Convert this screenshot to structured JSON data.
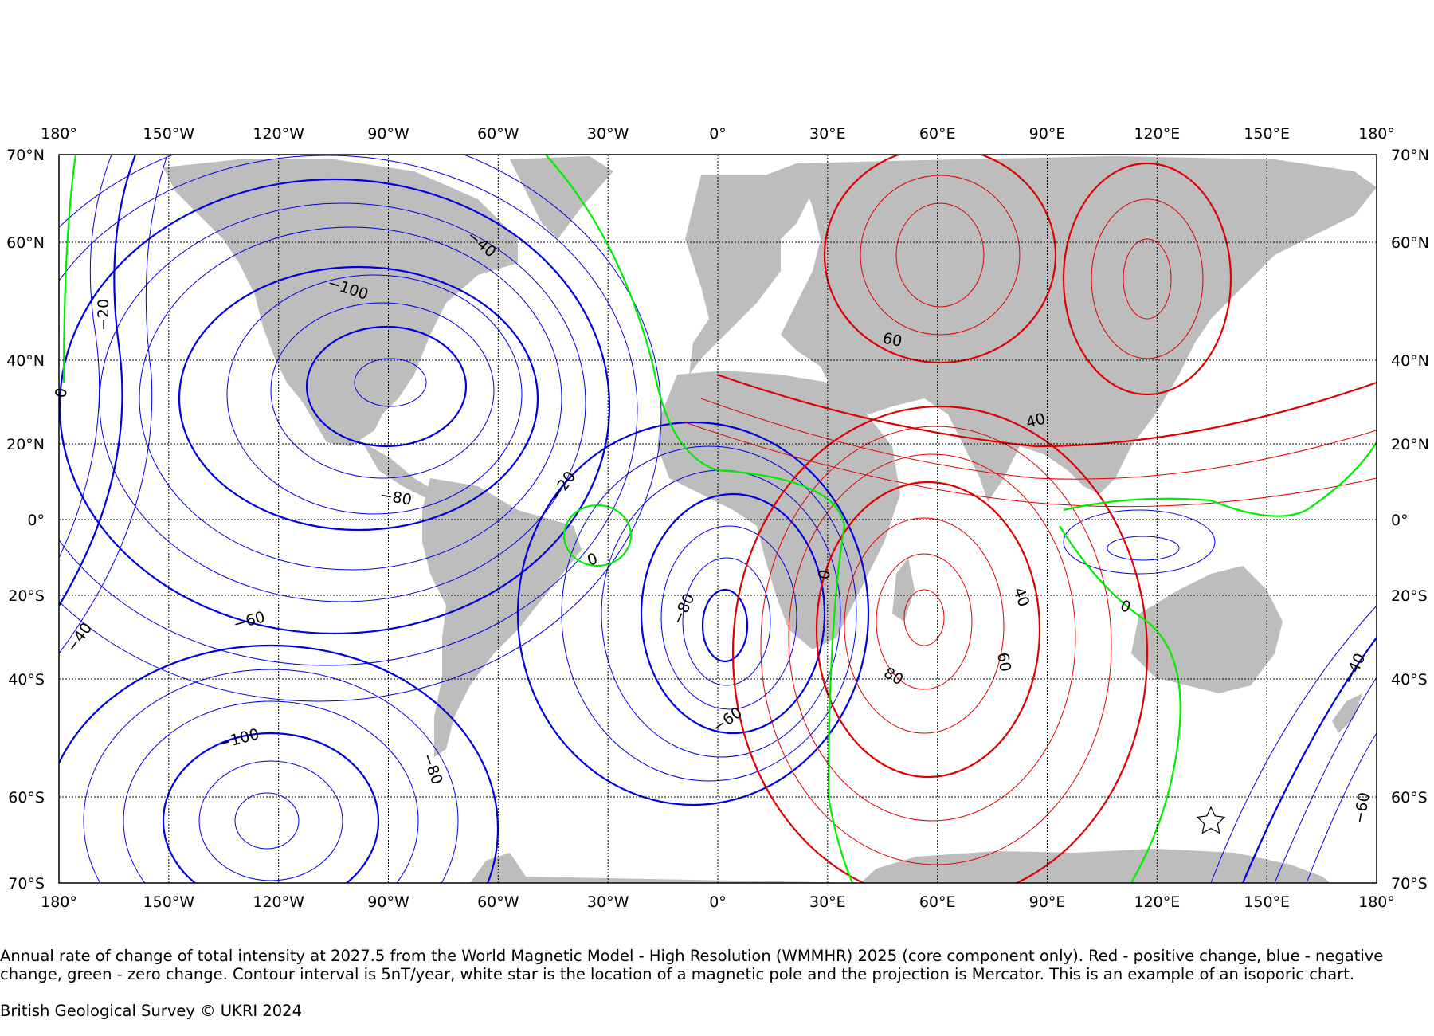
{
  "map": {
    "projection": "Mercator",
    "lon_range": [
      -180,
      180
    ],
    "lat_range": [
      -70,
      70
    ],
    "top_lon_labels": [
      "180°",
      "150°W",
      "120°W",
      "90°W",
      "60°W",
      "30°W",
      "0°",
      "30°E",
      "60°E",
      "90°E",
      "120°E",
      "150°E",
      "180°"
    ],
    "bottom_lon_labels": [
      "180°",
      "150°W",
      "120°W",
      "90°W",
      "60°W",
      "30°W",
      "0°",
      "30°E",
      "60°E",
      "90°E",
      "120°E",
      "150°E",
      "180°"
    ],
    "left_lat_labels": [
      "70°N",
      "60°N",
      "40°N",
      "20°N",
      "0°",
      "20°S",
      "40°S",
      "60°S",
      "70°S"
    ],
    "right_lat_labels": [
      "70°N",
      "60°N",
      "40°N",
      "20°N",
      "0°",
      "20°S",
      "40°S",
      "60°S",
      "70°S"
    ],
    "grid": "dotted",
    "land_color": "#bdbdbd",
    "colors": {
      "positive": "#e00000",
      "negative": "#0000e0",
      "zero": "#00ee00",
      "grid": "#000000"
    },
    "contour_labels": [
      {
        "text": "-40",
        "color": "negative"
      },
      {
        "text": "-20",
        "color": "negative"
      },
      {
        "text": "-100",
        "color": "negative"
      },
      {
        "text": "-80",
        "color": "negative"
      },
      {
        "text": "-20",
        "color": "negative"
      },
      {
        "text": "-60",
        "color": "negative"
      },
      {
        "text": "-40",
        "color": "negative"
      },
      {
        "text": "-100",
        "color": "negative"
      },
      {
        "text": "-80",
        "color": "negative"
      },
      {
        "text": "-80",
        "color": "negative"
      },
      {
        "text": "-60",
        "color": "negative"
      },
      {
        "text": "-40",
        "color": "negative"
      },
      {
        "text": "-60",
        "color": "negative"
      },
      {
        "text": "0",
        "color": "zero"
      },
      {
        "text": "0",
        "color": "zero"
      },
      {
        "text": "0",
        "color": "zero"
      },
      {
        "text": "0",
        "color": "zero"
      },
      {
        "text": "60",
        "color": "positive"
      },
      {
        "text": "40",
        "color": "positive"
      },
      {
        "text": "40",
        "color": "positive"
      },
      {
        "text": "60",
        "color": "positive"
      },
      {
        "text": "80",
        "color": "positive"
      }
    ],
    "marker": {
      "type": "star",
      "fill": "#ffffff",
      "meaning": "magnetic pole"
    },
    "contour_interval_nT_per_year": 5
  },
  "caption": {
    "text": "Annual rate of change of total intensity at 2027.5 from the World Magnetic Model - High Resolution (WMMHR) 2025 (core component only). Red - positive change, blue - negative change, green - zero change. Contour interval is 5nT/year, white star is the location of a magnetic pole and the projection is Mercator. This is an example of an isoporic chart.",
    "credit": "British Geological Survey © UKRI 2024"
  }
}
